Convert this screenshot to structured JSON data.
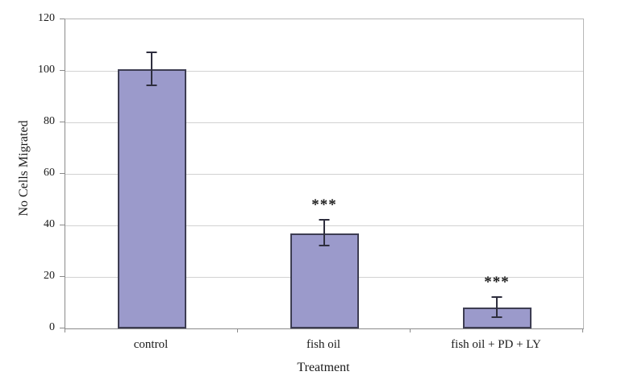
{
  "chart_data": {
    "type": "bar",
    "xlabel": "Treatment",
    "ylabel": "No Cells Migrated",
    "categories": [
      "control",
      "fish oil",
      "fish oil + PD + LY"
    ],
    "values": [
      100.5,
      37,
      8
    ],
    "errors": [
      6.5,
      5,
      4
    ],
    "annotations": [
      "",
      "***",
      "***"
    ],
    "ylim": [
      0,
      120
    ],
    "yticks": [
      0,
      20,
      40,
      60,
      80,
      100,
      120
    ],
    "grid": "horizontal",
    "legend": "none",
    "colors": {
      "bar_fill": "#9b9acb",
      "bar_border": "#3d3d52",
      "error_bar": "#2e2e3e",
      "gridline": "#d2d2d2",
      "axis": "#8a8a8a",
      "text": "#1a1a1a"
    }
  }
}
